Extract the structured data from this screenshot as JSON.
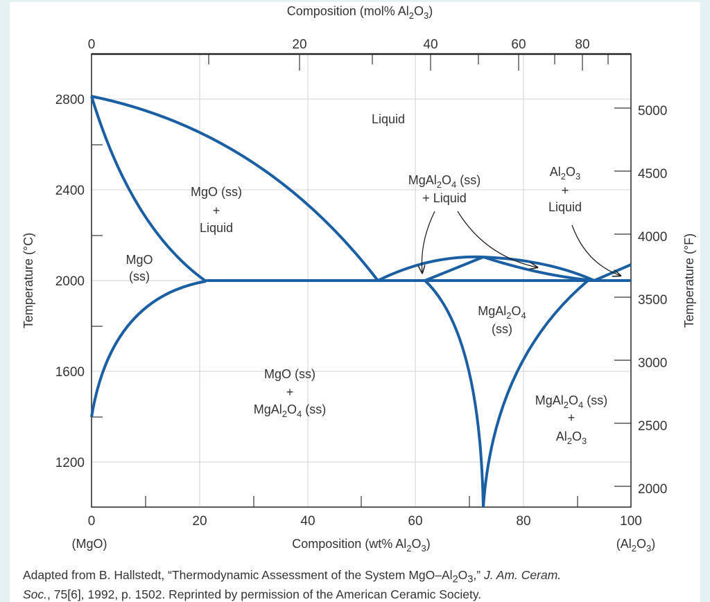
{
  "title_top": {
    "main": "Composition (mol% Al",
    "sub2": "2",
    "o": "O",
    "sub3": "3",
    "close": ")"
  },
  "top_ticks": [
    "0",
    "20",
    "40",
    "60",
    "80"
  ],
  "left_axis": {
    "label": "Temperature (°C)",
    "ticks": [
      "2800",
      "2400",
      "2000",
      "1600",
      "1200"
    ]
  },
  "right_axis": {
    "label": "Temperature (°F)",
    "ticks": [
      "5000",
      "4500",
      "4000",
      "3500",
      "3000",
      "2500",
      "2000"
    ]
  },
  "bottom_ticks": [
    "0",
    "20",
    "40",
    "60",
    "80",
    "100"
  ],
  "bottom_axis": {
    "left_end": "(MgO)",
    "label_main": "Composition (wt% Al",
    "label_sub2": "2",
    "label_o": "O",
    "label_sub3": "3",
    "label_close": ")",
    "right_end_a": "(Al",
    "right_end_sub2": "2",
    "right_end_o": "O",
    "right_end_sub3": "3",
    "right_end_close": ")"
  },
  "regions": {
    "liquid": "Liquid",
    "mgo_ss_liquid": [
      "MgO (ss)",
      "+",
      "Liquid"
    ],
    "mgo_ss": [
      "MgO",
      "(ss)"
    ],
    "spinel_liquid": [
      "MgAl",
      "2",
      "O",
      "4",
      " (ss)",
      "+ Liquid"
    ],
    "al2o3_liquid": [
      "Al",
      "2",
      "O",
      "3",
      "+",
      "Liquid"
    ],
    "spinel_ss": [
      "MgAl",
      "2",
      "O",
      "4",
      "(ss)"
    ],
    "mgo_spinel": [
      "MgO (ss)",
      "+",
      "MgAl",
      "2",
      "O",
      "4",
      " (ss)"
    ],
    "spinel_al2o3": [
      "MgAl",
      "2",
      "O",
      "4",
      " (ss)",
      "+",
      "Al",
      "2",
      "O",
      "3"
    ]
  },
  "caption": {
    "line1_a": "Adapted from B. Hallstedt, “Thermodynamic Assessment of the System MgO–Al",
    "line1_sub2": "2",
    "line1_o": "O",
    "line1_sub3": "3",
    "line1_b": ",” ",
    "line1_journal": "J. Am. Ceram.",
    "line2_journal": "Soc.",
    "line2_rest": ", 75[6], 1992, p. 1502. Reprinted by permission of the American Ceramic Society."
  },
  "colors": {
    "curve": "#1a5fa3",
    "grid": "#cccccc",
    "arrow": "#222222"
  }
}
